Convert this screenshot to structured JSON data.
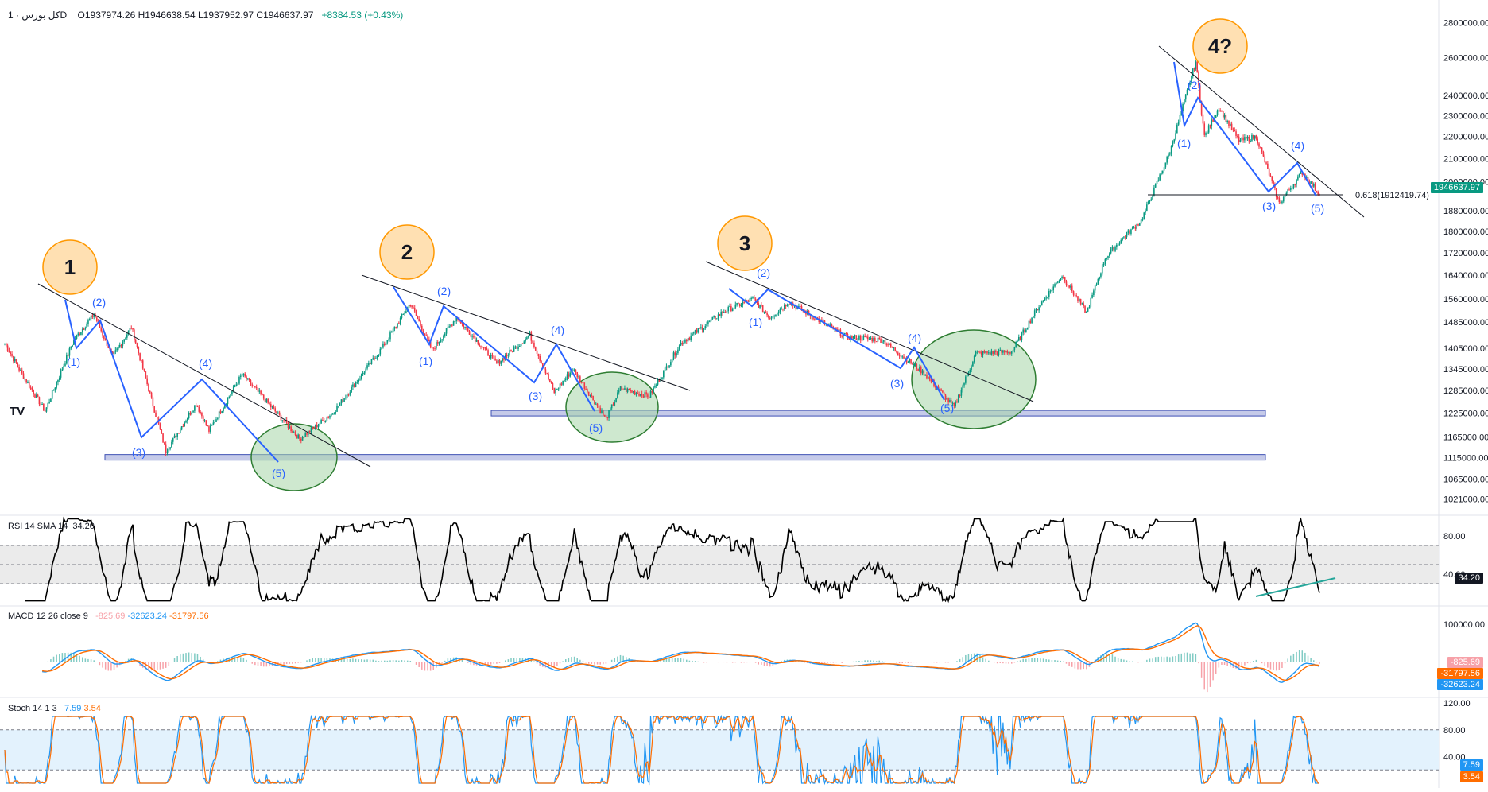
{
  "header": {
    "symbol": "کل بورس",
    "interval": "1D",
    "ohlc": "O1937974.26  H1946638.54  L1937952.97  C1946637.97",
    "change": "+8384.53 (+0.43%)"
  },
  "price_axis": {
    "ticks": [
      "2800000.00",
      "2600000.00",
      "2400000.00",
      "2300000.00",
      "2200000.00",
      "2100000.00",
      "2000000.00",
      "1880000.00",
      "1800000.00",
      "1720000.00",
      "1640000.00",
      "1560000.00",
      "1485000.00",
      "1405000.00",
      "1345000.00",
      "1285000.00",
      "1225000.00",
      "1165000.00",
      "1115000.00",
      "1065000.00",
      "1021000.00"
    ],
    "last_price": "1946637.97",
    "fib_label": "0.618(1912419.74)"
  },
  "waves": {
    "big": [
      "1",
      "2",
      "3",
      "4?"
    ],
    "sub": [
      "(1)",
      "(2)",
      "(3)",
      "(4)",
      "(5)"
    ]
  },
  "rsi": {
    "title": "RSI 14 SMA 14",
    "value": "34.20",
    "ticks": [
      "80.00",
      "40.00"
    ]
  },
  "macd": {
    "title": "MACD 12 26 close 9",
    "hist": "-825.69",
    "macd": "-32623.24",
    "signal": "-31797.56",
    "ticks": [
      "100000.00"
    ]
  },
  "stoch": {
    "title": "Stoch 14 1 3",
    "k": "7.59",
    "d": "3.54",
    "ticks": [
      "120.00",
      "80.00",
      "40.00"
    ]
  },
  "colors": {
    "up": "#089981",
    "down": "#f23645",
    "wave": "#2962ff",
    "rsi": "#000000",
    "macd": "#2196f3",
    "signal": "#ff6d00",
    "stoch_k": "#2196f3",
    "stoch_d": "#ff6d00",
    "circle": "#ffe0b2",
    "ellipse": "#a5d6a7"
  },
  "chart_data": {
    "type": "candlestick",
    "title": "",
    "xlabel": "",
    "ylabel": "",
    "log_scale": true,
    "ylim": [
      1000000,
      2850000
    ],
    "anchors": [
      {
        "i": 0,
        "v": 1420000
      },
      {
        "i": 12,
        "v": 1330000
      },
      {
        "i": 28,
        "v": 1230000
      },
      {
        "i": 48,
        "v": 1430000
      },
      {
        "i": 62,
        "v": 1510000
      },
      {
        "i": 75,
        "v": 1380000
      },
      {
        "i": 88,
        "v": 1470000
      },
      {
        "i": 112,
        "v": 1130000
      },
      {
        "i": 133,
        "v": 1250000
      },
      {
        "i": 142,
        "v": 1180000
      },
      {
        "i": 165,
        "v": 1330000
      },
      {
        "i": 205,
        "v": 1160000
      },
      {
        "i": 228,
        "v": 1225000
      },
      {
        "i": 262,
        "v": 1405000
      },
      {
        "i": 282,
        "v": 1545000
      },
      {
        "i": 297,
        "v": 1400000
      },
      {
        "i": 314,
        "v": 1500000
      },
      {
        "i": 342,
        "v": 1360000
      },
      {
        "i": 365,
        "v": 1445000
      },
      {
        "i": 382,
        "v": 1280000
      },
      {
        "i": 395,
        "v": 1345000
      },
      {
        "i": 418,
        "v": 1210000
      },
      {
        "i": 428,
        "v": 1290000
      },
      {
        "i": 448,
        "v": 1270000
      },
      {
        "i": 470,
        "v": 1420000
      },
      {
        "i": 500,
        "v": 1520000
      },
      {
        "i": 520,
        "v": 1560000
      },
      {
        "i": 532,
        "v": 1500000
      },
      {
        "i": 545,
        "v": 1550000
      },
      {
        "i": 585,
        "v": 1440000
      },
      {
        "i": 610,
        "v": 1430000
      },
      {
        "i": 640,
        "v": 1330000
      },
      {
        "i": 660,
        "v": 1240000
      },
      {
        "i": 675,
        "v": 1390000
      },
      {
        "i": 700,
        "v": 1395000
      },
      {
        "i": 718,
        "v": 1530000
      },
      {
        "i": 735,
        "v": 1640000
      },
      {
        "i": 752,
        "v": 1515000
      },
      {
        "i": 765,
        "v": 1700000
      },
      {
        "i": 778,
        "v": 1780000
      },
      {
        "i": 790,
        "v": 1840000
      },
      {
        "i": 810,
        "v": 2130000
      },
      {
        "i": 828,
        "v": 2580000
      },
      {
        "i": 834,
        "v": 2200000
      },
      {
        "i": 844,
        "v": 2340000
      },
      {
        "i": 858,
        "v": 2180000
      },
      {
        "i": 870,
        "v": 2200000
      },
      {
        "i": 886,
        "v": 1910000
      },
      {
        "i": 902,
        "v": 2040000
      },
      {
        "i": 914,
        "v": 1946637
      }
    ],
    "bars": 915,
    "last_close": 1946637.97
  }
}
